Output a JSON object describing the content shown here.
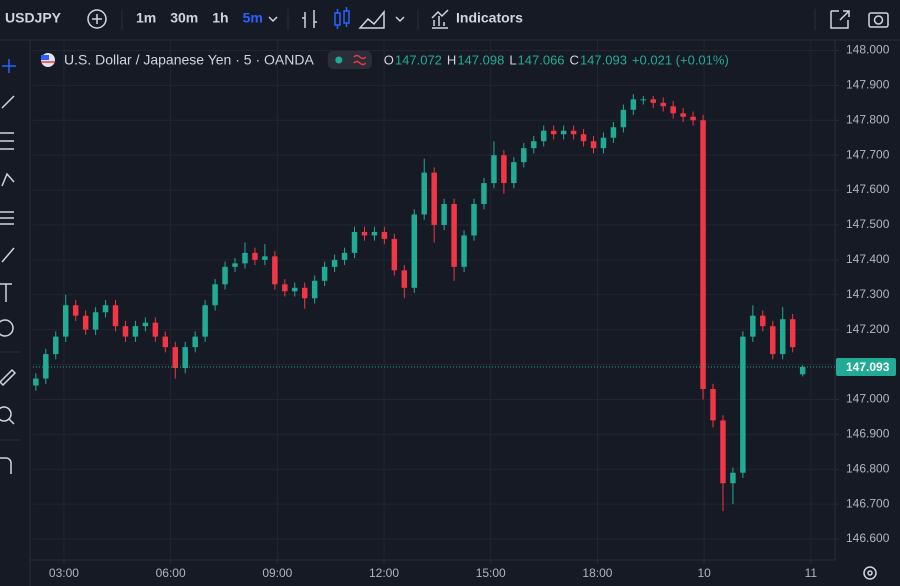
{
  "toolbar": {
    "symbol": "USDJPY",
    "intervals": [
      "1m",
      "30m",
      "1h",
      "5m"
    ],
    "active_interval": 3,
    "indicators": "Indicators"
  },
  "legend": {
    "title": "U.S. Dollar / Japanese Yen · 5 · OANDA",
    "items": [
      [
        "O",
        "147.072"
      ],
      [
        "H",
        "147.098"
      ],
      [
        "L",
        "147.066"
      ],
      [
        "C",
        "147.093"
      ]
    ],
    "change": "+0.021 (+0.01%)"
  },
  "chart_data": {
    "type": "candlestick",
    "up_color": "#22ab94",
    "down_color": "#f23645",
    "grid": true,
    "xlim": [
      2.13,
      24.68
    ],
    "xticks": [
      {
        "value": 3,
        "label": "03:00"
      },
      {
        "value": 6,
        "label": "06:00"
      },
      {
        "value": 9,
        "label": "09:00"
      },
      {
        "value": 12,
        "label": "12:00"
      },
      {
        "value": 15,
        "label": "15:00"
      },
      {
        "value": 18,
        "label": "18:00"
      },
      {
        "value": 21,
        "label": "10"
      },
      {
        "value": 24,
        "label": "11"
      }
    ],
    "ylim": [
      146.54,
      148.03
    ],
    "yticks": [
      {
        "value": 146.6,
        "label": "146.600"
      },
      {
        "value": 146.7,
        "label": "146.700"
      },
      {
        "value": 146.8,
        "label": "146.800"
      },
      {
        "value": 146.9,
        "label": "146.900"
      },
      {
        "value": 147,
        "label": "147.000"
      },
      {
        "value": 147.1,
        "label": "147.100"
      },
      {
        "value": 147.2,
        "label": "147.200"
      },
      {
        "value": 147.3,
        "label": "147.300"
      },
      {
        "value": 147.4,
        "label": "147.400"
      },
      {
        "value": 147.5,
        "label": "147.500"
      },
      {
        "value": 147.6,
        "label": "147.600"
      },
      {
        "value": 147.7,
        "label": "147.700"
      },
      {
        "value": 147.8,
        "label": "147.800"
      },
      {
        "value": 147.9,
        "label": "147.900"
      },
      {
        "value": 148,
        "label": "148.000"
      }
    ],
    "last_price": 147.093,
    "x": [
      2.21,
      2.49,
      2.77,
      3.05,
      3.33,
      3.61,
      3.89,
      4.17,
      4.45,
      4.73,
      5.01,
      5.29,
      5.57,
      5.85,
      6.13,
      6.41,
      6.69,
      6.97,
      7.25,
      7.53,
      7.81,
      8.09,
      8.37,
      8.65,
      8.93,
      9.21,
      9.49,
      9.77,
      10.05,
      10.33,
      10.61,
      10.89,
      11.17,
      11.45,
      11.73,
      12.01,
      12.29,
      12.57,
      12.85,
      13.13,
      13.41,
      13.69,
      13.97,
      14.25,
      14.53,
      14.81,
      15.09,
      15.37,
      15.65,
      15.93,
      16.21,
      16.49,
      16.77,
      17.05,
      17.33,
      17.61,
      17.89,
      18.17,
      18.45,
      18.73,
      19.01,
      19.29,
      19.57,
      19.85,
      20.13,
      20.41,
      20.69,
      20.97,
      21.25,
      21.53,
      21.81,
      22.09,
      22.37,
      22.65,
      22.93,
      23.21,
      23.49,
      23.77
    ],
    "open": [
      147.04,
      147.06,
      147.13,
      147.18,
      147.27,
      147.24,
      147.2,
      147.25,
      147.27,
      147.21,
      147.18,
      147.21,
      147.22,
      147.18,
      147.15,
      147.09,
      147.15,
      147.18,
      147.27,
      147.33,
      147.38,
      147.39,
      147.42,
      147.4,
      147.41,
      147.33,
      147.31,
      147.32,
      147.29,
      147.34,
      147.38,
      147.4,
      147.42,
      147.48,
      147.47,
      147.48,
      147.46,
      147.37,
      147.32,
      147.53,
      147.65,
      147.5,
      147.56,
      147.38,
      147.47,
      147.56,
      147.62,
      147.7,
      147.62,
      147.68,
      147.72,
      147.74,
      147.77,
      147.76,
      147.77,
      147.76,
      147.74,
      147.72,
      147.75,
      147.78,
      147.83,
      147.86,
      147.86,
      147.85,
      147.84,
      147.82,
      147.81,
      147.8,
      147.03,
      146.94,
      146.76,
      146.79,
      147.18,
      147.24,
      147.21,
      147.13,
      147.23,
      147.072
    ],
    "high": [
      147.075,
      147.145,
      147.195,
      147.3,
      147.285,
      147.255,
      147.265,
      147.285,
      147.285,
      147.225,
      147.225,
      147.235,
      147.235,
      147.195,
      147.165,
      147.165,
      147.195,
      147.285,
      147.345,
      147.395,
      147.405,
      147.45,
      147.435,
      147.445,
      147.425,
      147.345,
      147.335,
      147.335,
      147.355,
      147.395,
      147.415,
      147.435,
      147.495,
      147.495,
      147.495,
      147.495,
      147.475,
      147.385,
      147.545,
      147.69,
      147.665,
      147.575,
      147.575,
      147.485,
      147.575,
      147.635,
      147.74,
      147.715,
      147.695,
      147.735,
      147.755,
      147.785,
      147.785,
      147.785,
      147.785,
      147.775,
      147.755,
      147.765,
      147.795,
      147.845,
      147.875,
      147.87,
      147.87,
      147.865,
      147.855,
      147.835,
      147.825,
      147.815,
      147.045,
      146.955,
      146.805,
      147.195,
      147.27,
      147.255,
      147.225,
      147.265,
      147.245,
      147.098
    ],
    "low": [
      147.025,
      147.045,
      147.115,
      147.165,
      147.225,
      147.185,
      147.185,
      147.235,
      147.195,
      147.165,
      147.165,
      147.195,
      147.165,
      147.135,
      147.06,
      147.075,
      147.135,
      147.165,
      147.255,
      147.315,
      147.365,
      147.375,
      147.385,
      147.385,
      147.315,
      147.295,
      147.295,
      147.26,
      147.275,
      147.325,
      147.365,
      147.385,
      147.405,
      147.455,
      147.455,
      147.445,
      147.355,
      147.29,
      147.305,
      147.515,
      147.45,
      147.485,
      147.34,
      147.365,
      147.455,
      147.545,
      147.605,
      147.59,
      147.605,
      147.665,
      147.705,
      147.725,
      147.745,
      147.745,
      147.745,
      147.725,
      147.705,
      147.705,
      147.735,
      147.765,
      147.815,
      147.845,
      147.835,
      147.825,
      147.805,
      147.795,
      147.785,
      147,
      146.92,
      146.68,
      146.7,
      146.775,
      147.165,
      147.195,
      147.115,
      147.115,
      147.135,
      147.066
    ],
    "close": [
      147.06,
      147.13,
      147.18,
      147.27,
      147.24,
      147.2,
      147.25,
      147.27,
      147.21,
      147.18,
      147.21,
      147.22,
      147.18,
      147.15,
      147.09,
      147.15,
      147.18,
      147.27,
      147.33,
      147.38,
      147.39,
      147.42,
      147.4,
      147.41,
      147.33,
      147.31,
      147.32,
      147.29,
      147.34,
      147.38,
      147.4,
      147.42,
      147.48,
      147.47,
      147.48,
      147.46,
      147.37,
      147.32,
      147.53,
      147.65,
      147.5,
      147.56,
      147.38,
      147.47,
      147.56,
      147.62,
      147.7,
      147.62,
      147.68,
      147.72,
      147.74,
      147.77,
      147.76,
      147.77,
      147.76,
      147.74,
      147.72,
      147.75,
      147.78,
      147.83,
      147.86,
      147.86,
      147.85,
      147.84,
      147.82,
      147.81,
      147.8,
      147.03,
      146.94,
      146.76,
      146.79,
      147.18,
      147.24,
      147.21,
      147.13,
      147.23,
      147.15,
      147.093
    ]
  }
}
